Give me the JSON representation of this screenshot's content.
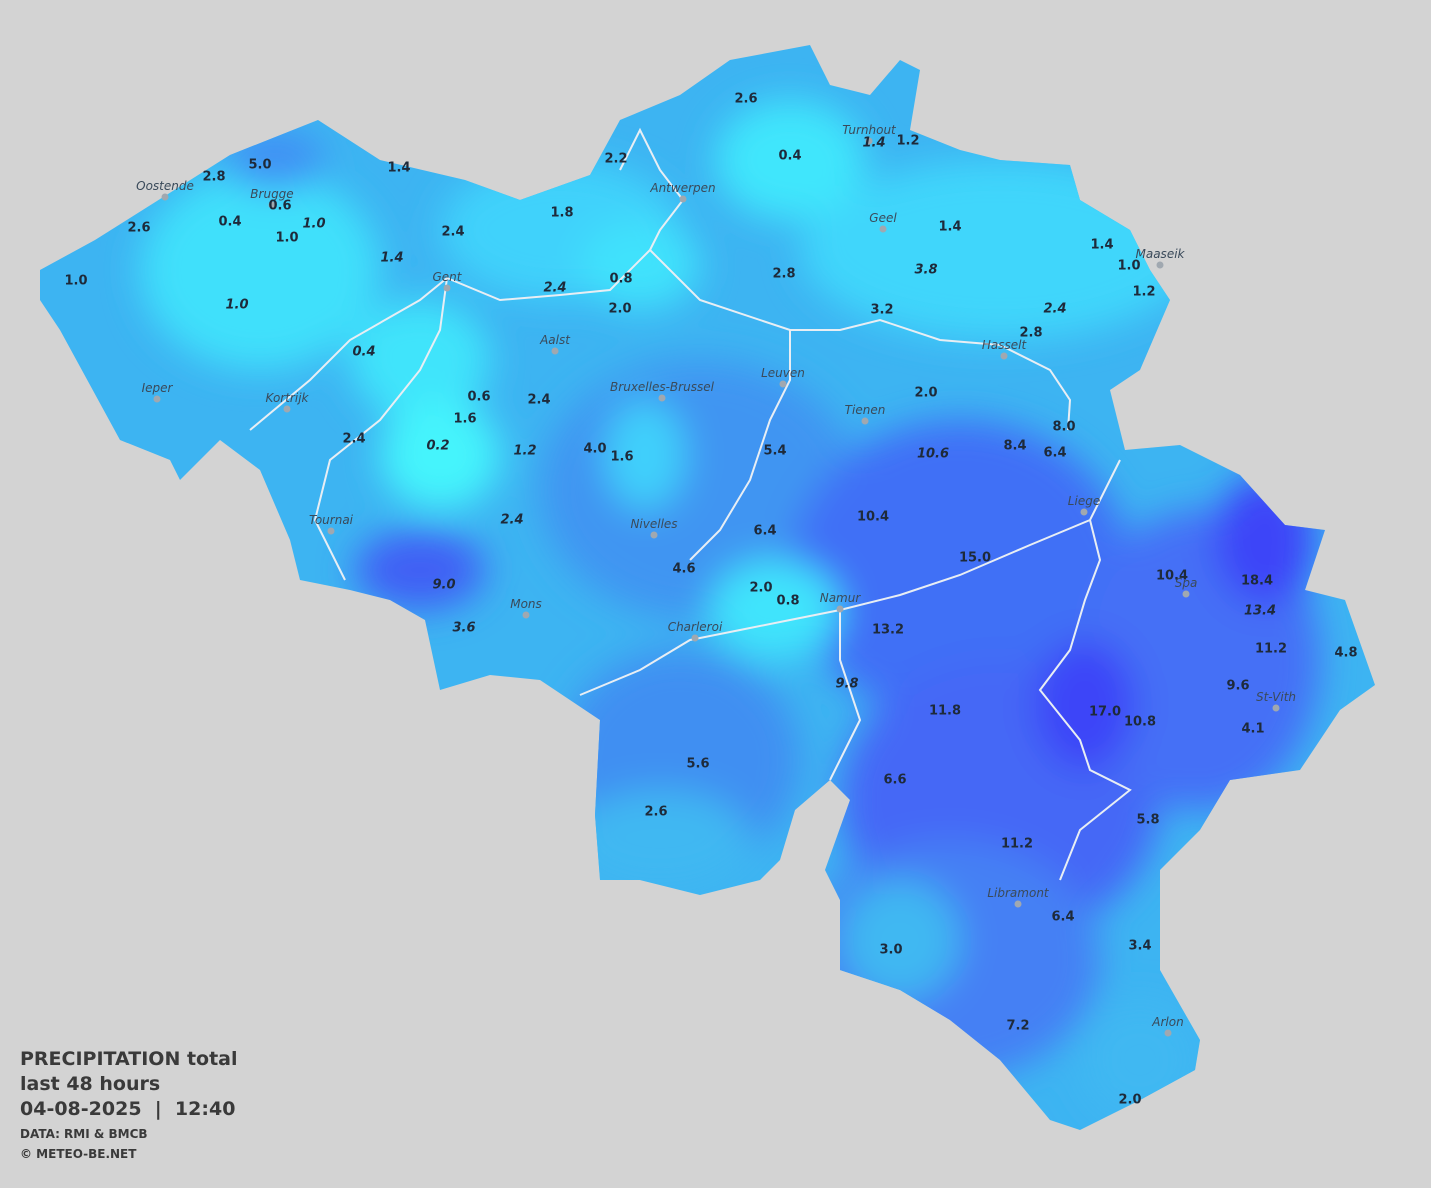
{
  "legend": {
    "title": "PRECIPITATION total",
    "period": "last 48 hours",
    "timestamp": "04-08-2025  |  12:40",
    "source": "DATA: RMI & BMCB",
    "copyright": "© METEO-BE.NET"
  },
  "cities": [
    "Oostende",
    "Brugge",
    "Antwerpen",
    "Turnhout",
    "Geel",
    "Maaseik",
    "Gent",
    "Aalst",
    "Hasselt",
    "Leuven",
    "Bruxelles-Brussel",
    "Ieper",
    "Kortrijk",
    "Tienen",
    "Liege",
    "Tournai",
    "Nivelles",
    "Spa",
    "Namur",
    "Mons",
    "Charleroi",
    "St-Vith",
    "Libramont",
    "Arlon"
  ],
  "measurements": [
    {
      "label": "2.6",
      "style": "normal"
    },
    {
      "label": "0.4",
      "style": "normal"
    },
    {
      "label": "1.4",
      "style": "italic"
    },
    {
      "label": "1.2",
      "style": "normal"
    },
    {
      "label": "2.2",
      "style": "normal"
    },
    {
      "label": "5.0",
      "style": "normal"
    },
    {
      "label": "2.8",
      "style": "normal"
    },
    {
      "label": "1.4",
      "style": "normal"
    },
    {
      "label": "0.6",
      "style": "normal"
    },
    {
      "label": "0.4",
      "style": "normal"
    },
    {
      "label": "1.0",
      "style": "italic"
    },
    {
      "label": "1.0",
      "style": "normal"
    },
    {
      "label": "2.6",
      "style": "normal"
    },
    {
      "label": "2.4",
      "style": "normal"
    },
    {
      "label": "1.8",
      "style": "normal"
    },
    {
      "label": "1.4",
      "style": "normal"
    },
    {
      "label": "1.4",
      "style": "normal"
    },
    {
      "label": "1.0",
      "style": "normal"
    },
    {
      "label": "1.2",
      "style": "normal"
    },
    {
      "label": "1.0",
      "style": "normal"
    },
    {
      "label": "1.4",
      "style": "italic"
    },
    {
      "label": "1.0",
      "style": "italic"
    },
    {
      "label": "2.4",
      "style": "italic"
    },
    {
      "label": "0.8",
      "style": "normal"
    },
    {
      "label": "2.0",
      "style": "normal"
    },
    {
      "label": "2.8",
      "style": "normal"
    },
    {
      "label": "3.8",
      "style": "italic"
    },
    {
      "label": "3.2",
      "style": "normal"
    },
    {
      "label": "2.4",
      "style": "italic"
    },
    {
      "label": "2.8",
      "style": "normal"
    },
    {
      "label": "0.4",
      "style": "italic"
    },
    {
      "label": "0.6",
      "style": "normal"
    },
    {
      "label": "2.4",
      "style": "normal"
    },
    {
      "label": "2.0",
      "style": "normal"
    },
    {
      "label": "1.6",
      "style": "normal"
    },
    {
      "label": "2.4",
      "style": "normal"
    },
    {
      "label": "0.2",
      "style": "italic"
    },
    {
      "label": "1.2",
      "style": "italic"
    },
    {
      "label": "4.0",
      "style": "normal"
    },
    {
      "label": "1.6",
      "style": "normal"
    },
    {
      "label": "5.4",
      "style": "normal"
    },
    {
      "label": "10.6",
      "style": "italic"
    },
    {
      "label": "8.4",
      "style": "normal"
    },
    {
      "label": "8.0",
      "style": "normal"
    },
    {
      "label": "6.4",
      "style": "normal"
    },
    {
      "label": "2.4",
      "style": "italic"
    },
    {
      "label": "10.4",
      "style": "normal"
    },
    {
      "label": "6.4",
      "style": "normal"
    },
    {
      "label": "15.0",
      "style": "normal"
    },
    {
      "label": "4.6",
      "style": "normal"
    },
    {
      "label": "2.0",
      "style": "normal"
    },
    {
      "label": "0.8",
      "style": "normal"
    },
    {
      "label": "9.0",
      "style": "italic"
    },
    {
      "label": "10.4",
      "style": "normal"
    },
    {
      "label": "18.4",
      "style": "normal"
    },
    {
      "label": "13.4",
      "style": "italic"
    },
    {
      "label": "3.6",
      "style": "italic"
    },
    {
      "label": "13.2",
      "style": "normal"
    },
    {
      "label": "11.2",
      "style": "normal"
    },
    {
      "label": "4.8",
      "style": "normal"
    },
    {
      "label": "9.8",
      "style": "italic"
    },
    {
      "label": "9.6",
      "style": "normal"
    },
    {
      "label": "11.8",
      "style": "normal"
    },
    {
      "label": "17.0",
      "style": "normal"
    },
    {
      "label": "10.8",
      "style": "normal"
    },
    {
      "label": "4.1",
      "style": "normal"
    },
    {
      "label": "5.6",
      "style": "normal"
    },
    {
      "label": "6.6",
      "style": "normal"
    },
    {
      "label": "2.6",
      "style": "normal"
    },
    {
      "label": "5.8",
      "style": "normal"
    },
    {
      "label": "11.2",
      "style": "normal"
    },
    {
      "label": "6.4",
      "style": "normal"
    },
    {
      "label": "3.0",
      "style": "normal"
    },
    {
      "label": "3.4",
      "style": "normal"
    },
    {
      "label": "7.2",
      "style": "normal"
    },
    {
      "label": "2.0",
      "style": "normal"
    }
  ]
}
